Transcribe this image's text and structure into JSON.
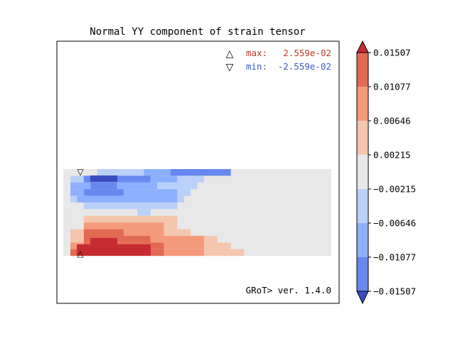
{
  "chart_data": {
    "type": "heatmap",
    "title": "Normal YY component of strain tensor",
    "max_label": "max:",
    "max_value": "2.559e-02",
    "min_label": "min:",
    "min_value": "-2.559e-02",
    "version_text": "GRoT> ver. 1.4.0",
    "colorbar": {
      "ticks": [
        "0.01507",
        "0.01077",
        "0.00646",
        "0.00215",
        "−0.00215",
        "−0.00646",
        "−0.01077",
        "−0.01507"
      ],
      "levels": [
        -0.01507,
        -0.01077,
        -0.00646,
        -0.00215,
        0.00215,
        0.00646,
        0.01077,
        0.01507
      ],
      "band_colors": [
        "#6788ee",
        "#8db0fe",
        "#b9d0f9",
        "#e8e8e8",
        "#f4c6ae",
        "#f49a7b",
        "#e26952"
      ],
      "extend_low_color": "#3b4cc0",
      "extend_high_color": "#c72b32"
    },
    "field": {
      "background_level": 3,
      "outline_color": "#e8e8e8",
      "rows": [
        [
          [
            2,
            4,
            7
          ],
          [
            2,
            7,
            11
          ],
          [
            1,
            11,
            15
          ],
          [
            0,
            15,
            20
          ],
          [
            0,
            20,
            24
          ]
        ],
        [
          [
            2,
            0,
            2
          ],
          [
            0,
            2,
            4
          ],
          [
            0,
            4,
            12
          ],
          [
            1,
            12,
            16
          ],
          [
            2,
            16,
            20
          ]
        ],
        [
          [
            1,
            0,
            3
          ],
          [
            0,
            3,
            7
          ],
          [
            1,
            7,
            13
          ],
          [
            2,
            13,
            19
          ]
        ],
        [
          [
            1,
            0,
            2
          ],
          [
            0,
            2,
            8
          ],
          [
            1,
            8,
            16
          ],
          [
            2,
            16,
            18
          ]
        ],
        [
          [
            2,
            0,
            1
          ],
          [
            1,
            1,
            16
          ],
          [
            2,
            16,
            17
          ]
        ],
        [
          [
            2,
            2,
            16
          ]
        ],
        [
          [
            3,
            0,
            10
          ],
          [
            2,
            10,
            12
          ]
        ],
        [
          [
            3,
            0,
            0
          ],
          [
            4,
            2,
            16
          ]
        ],
        [
          [
            5,
            2,
            14
          ],
          [
            4,
            14,
            16
          ]
        ],
        [
          [
            4,
            0,
            2
          ],
          [
            6,
            2,
            8
          ],
          [
            5,
            8,
            14
          ],
          [
            4,
            14,
            18
          ]
        ],
        [
          [
            4,
            0,
            2
          ],
          [
            6,
            2,
            12
          ],
          [
            5,
            12,
            20
          ],
          [
            4,
            20,
            22
          ]
        ],
        [
          [
            5,
            0,
            2
          ],
          [
            6,
            2,
            14
          ],
          [
            5,
            14,
            20
          ],
          [
            4,
            20,
            24
          ]
        ],
        [
          [
            6,
            0,
            14
          ],
          [
            5,
            14,
            20
          ],
          [
            4,
            20,
            26
          ]
        ]
      ]
    },
    "markers": [
      {
        "kind": "max",
        "symbol": "△"
      },
      {
        "kind": "min",
        "symbol": "▽"
      }
    ]
  }
}
